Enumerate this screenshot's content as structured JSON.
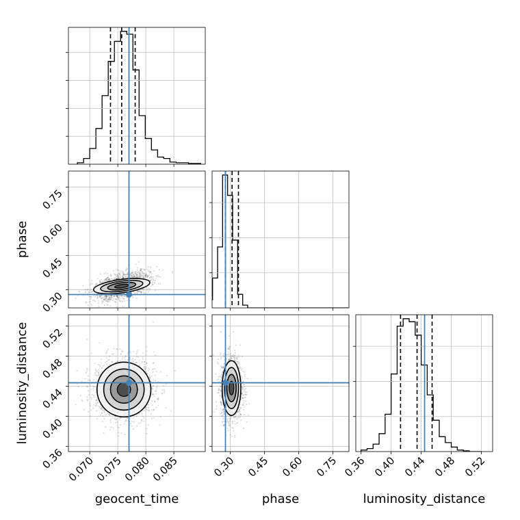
{
  "chart_data": [
    {
      "type": "histogram",
      "panel": "geocent_time-marginal",
      "parameter": "geocent_time",
      "bin_edges": [
        0.0678,
        0.0689,
        0.07,
        0.0711,
        0.0722,
        0.0733,
        0.0744,
        0.0755,
        0.0766,
        0.0777,
        0.0788,
        0.0799,
        0.081,
        0.0821,
        0.0832,
        0.0843,
        0.0854,
        0.0865,
        0.0876,
        0.0887,
        0.0898
      ],
      "counts": [
        0.01,
        0.04,
        0.11,
        0.25,
        0.48,
        0.72,
        0.86,
        0.93,
        0.91,
        0.66,
        0.34,
        0.18,
        0.1,
        0.05,
        0.04,
        0.015,
        0.01,
        0.01,
        0.005,
        0.005
      ],
      "quantiles": [
        0.0737,
        0.0757,
        0.0781
      ],
      "truth": 0.077,
      "xlim": [
        0.0662,
        0.0906
      ],
      "grid": true
    },
    {
      "type": "histogram",
      "panel": "phase-marginal",
      "parameter": "phase",
      "bin_edges": [
        0.2,
        0.222,
        0.244,
        0.266,
        0.288,
        0.31,
        0.332,
        0.354,
        0.376,
        0.398,
        0.42,
        0.442,
        0.464,
        0.486,
        0.508,
        0.53,
        0.552,
        0.574,
        0.596,
        0.618,
        0.64,
        0.662,
        0.684,
        0.706,
        0.728,
        0.75,
        0.772,
        0.794,
        0.816
      ],
      "counts": [
        0.06,
        0.22,
        0.45,
        0.98,
        0.83,
        0.5,
        0.1,
        0.02,
        0,
        0,
        0,
        0,
        0,
        0,
        0,
        0,
        0,
        0,
        0,
        0,
        0,
        0,
        0,
        0,
        0,
        0,
        0,
        0
      ],
      "quantiles": [
        0.2785,
        0.3075,
        0.3355
      ],
      "truth": 0.2785,
      "xlim": [
        0.22,
        0.82
      ],
      "grid": true
    },
    {
      "type": "histogram",
      "panel": "luminosity_distance-marginal",
      "parameter": "luminosity_distance",
      "bin_edges": [
        0.36,
        0.368,
        0.376,
        0.384,
        0.392,
        0.4,
        0.408,
        0.416,
        0.424,
        0.432,
        0.44,
        0.448,
        0.456,
        0.464,
        0.472,
        0.48,
        0.488,
        0.496,
        0.504,
        0.512,
        0.52
      ],
      "counts": [
        0.01,
        0.02,
        0.05,
        0.12,
        0.25,
        0.52,
        0.84,
        0.89,
        0.87,
        0.78,
        0.58,
        0.38,
        0.21,
        0.1,
        0.06,
        0.03,
        0.01,
        0.005,
        0,
        0
      ],
      "quantiles": [
        0.4125,
        0.4345,
        0.4545
      ],
      "truth": 0.4445,
      "xlim": [
        0.353,
        0.535
      ],
      "grid": true
    },
    {
      "type": "scatter-contour",
      "panel": "phase-vs-geocent_time",
      "x_parameter": "geocent_time",
      "y_parameter": "phase",
      "center": [
        0.0757,
        0.3155
      ],
      "spread": [
        0.0022,
        0.0268
      ],
      "correlation": 0.5,
      "contour_levels": 4,
      "truth": [
        0.077,
        0.2785
      ],
      "xlim": [
        0.0662,
        0.0906
      ],
      "ylim": [
        0.22,
        0.82
      ],
      "grid": true
    },
    {
      "type": "scatter-contour",
      "panel": "luminosity_distance-vs-geocent_time",
      "x_parameter": "geocent_time",
      "y_parameter": "luminosity_distance",
      "center": [
        0.0761,
        0.4355
      ],
      "spread": [
        0.0024,
        0.0182
      ],
      "correlation": 0,
      "contour_levels": 4,
      "truth": [
        0.077,
        0.4445
      ],
      "xlim": [
        0.0662,
        0.0906
      ],
      "ylim": [
        0.353,
        0.535
      ],
      "grid": true
    },
    {
      "type": "scatter-contour",
      "panel": "luminosity_distance-vs-phase",
      "x_parameter": "phase",
      "y_parameter": "luminosity_distance",
      "center": [
        0.305,
        0.4375
      ],
      "spread": [
        0.0205,
        0.0182
      ],
      "correlation": 0,
      "contour_levels": 4,
      "truth": [
        0.2785,
        0.4445
      ],
      "xlim": [
        0.22,
        0.82
      ],
      "ylim": [
        0.353,
        0.535
      ],
      "grid": true
    }
  ],
  "axes": {
    "geocent_time": {
      "label": "geocent_time",
      "ticks": [
        0.07,
        0.075,
        0.08,
        0.085
      ],
      "tick_labels": [
        "0.070",
        "0.075",
        "0.080",
        "0.085"
      ]
    },
    "phase": {
      "label": "phase",
      "ticks": [
        0.3,
        0.45,
        0.6,
        0.75
      ],
      "tick_labels": [
        "0.30",
        "0.45",
        "0.60",
        "0.75"
      ]
    },
    "luminosity_distance": {
      "label": "luminosity_distance",
      "ticks": [
        0.36,
        0.4,
        0.44,
        0.48,
        0.52
      ],
      "tick_labels": [
        "0.36",
        "0.40",
        "0.44",
        "0.48",
        "0.52"
      ]
    }
  },
  "colors": {
    "truth": "#4682b4",
    "contour": "#000000",
    "hist": "#000000",
    "quantile": "#000000",
    "grid": "#c0c0c0"
  }
}
